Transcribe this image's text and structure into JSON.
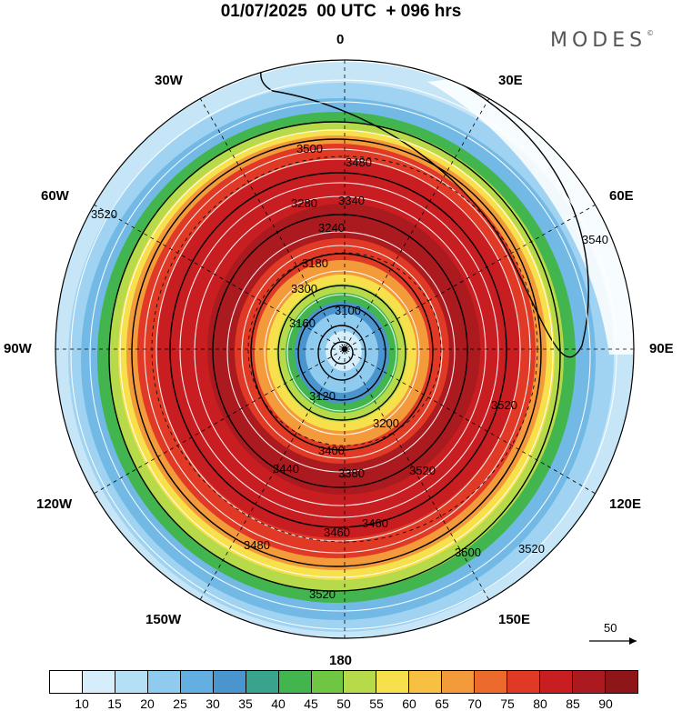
{
  "title": "01/07/2025  00 UTC  + 096 hrs",
  "brand": "MODES",
  "brand_mark": "©",
  "longitude_labels": {
    "top": "0",
    "bottom": "180",
    "left": "90W",
    "right": "90E",
    "upper_left": "30W",
    "upper_right": "30E",
    "mid_upper_left": "60W",
    "mid_upper_right": "60E",
    "mid_lower_left": "120W",
    "mid_lower_right": "120E",
    "lower_left": "150W",
    "lower_right": "150E"
  },
  "contour_labels": [
    "3100",
    "3120",
    "3160",
    "3180",
    "3200",
    "3240",
    "3280",
    "3300",
    "3340",
    "3380",
    "3400",
    "3440",
    "3460",
    "3480",
    "3500",
    "3520",
    "3540"
  ],
  "reference_vector": {
    "label": "50",
    "icon": "arrow-right-icon"
  },
  "colorbar": {
    "labels": [
      "10",
      "15",
      "20",
      "25",
      "30",
      "35",
      "40",
      "45",
      "50",
      "55",
      "60",
      "65",
      "70",
      "75",
      "80",
      "85",
      "90"
    ],
    "colors": [
      "#ffffff",
      "#d6eefb",
      "#b3e0f5",
      "#8ecbee",
      "#63afe1",
      "#4a95cd",
      "#3aa38e",
      "#42b54e",
      "#6fc642",
      "#b6da4a",
      "#f6e14c",
      "#f8c043",
      "#f39a3a",
      "#ec6a2c",
      "#e03a26",
      "#c81e22",
      "#ab1a1f",
      "#8e1518"
    ]
  }
}
